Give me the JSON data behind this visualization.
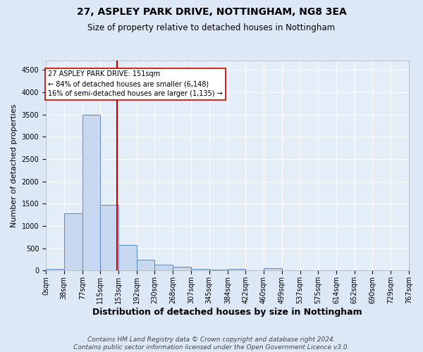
{
  "title1": "27, ASPLEY PARK DRIVE, NOTTINGHAM, NG8 3EA",
  "title2": "Size of property relative to detached houses in Nottingham",
  "xlabel": "Distribution of detached houses by size in Nottingham",
  "ylabel": "Number of detached properties",
  "bin_edges": [
    0,
    38,
    77,
    115,
    153,
    192,
    230,
    268,
    307,
    345,
    384,
    422,
    460,
    499,
    537,
    575,
    614,
    652,
    690,
    729,
    767
  ],
  "bar_heights": [
    30,
    1280,
    3500,
    1480,
    570,
    240,
    130,
    80,
    35,
    20,
    35,
    0,
    50,
    0,
    0,
    0,
    0,
    0,
    0,
    0
  ],
  "bar_facecolor": "#c8d8f0",
  "bar_edgecolor": "#5a8ac0",
  "property_size": 151,
  "vline_color": "#cc0000",
  "annotation_text": "27 ASPLEY PARK DRIVE: 151sqm\n← 84% of detached houses are smaller (6,148)\n16% of semi-detached houses are larger (1,135) →",
  "annotation_box_facecolor": "#ffffff",
  "annotation_box_edgecolor": "#cc0000",
  "ylim": [
    0,
    4700
  ],
  "yticks": [
    0,
    500,
    1000,
    1500,
    2000,
    2500,
    3000,
    3500,
    4000,
    4500
  ],
  "bg_color": "#dce8f5",
  "plot_bg_color": "#e4eef8",
  "footer": "Contains HM Land Registry data © Crown copyright and database right 2024.\nContains public sector information licensed under the Open Government Licence v3.0.",
  "title1_fontsize": 10,
  "title2_fontsize": 8.5,
  "xlabel_fontsize": 9,
  "ylabel_fontsize": 8,
  "annot_fontsize": 7,
  "tick_fontsize": 7,
  "footer_fontsize": 6.5
}
